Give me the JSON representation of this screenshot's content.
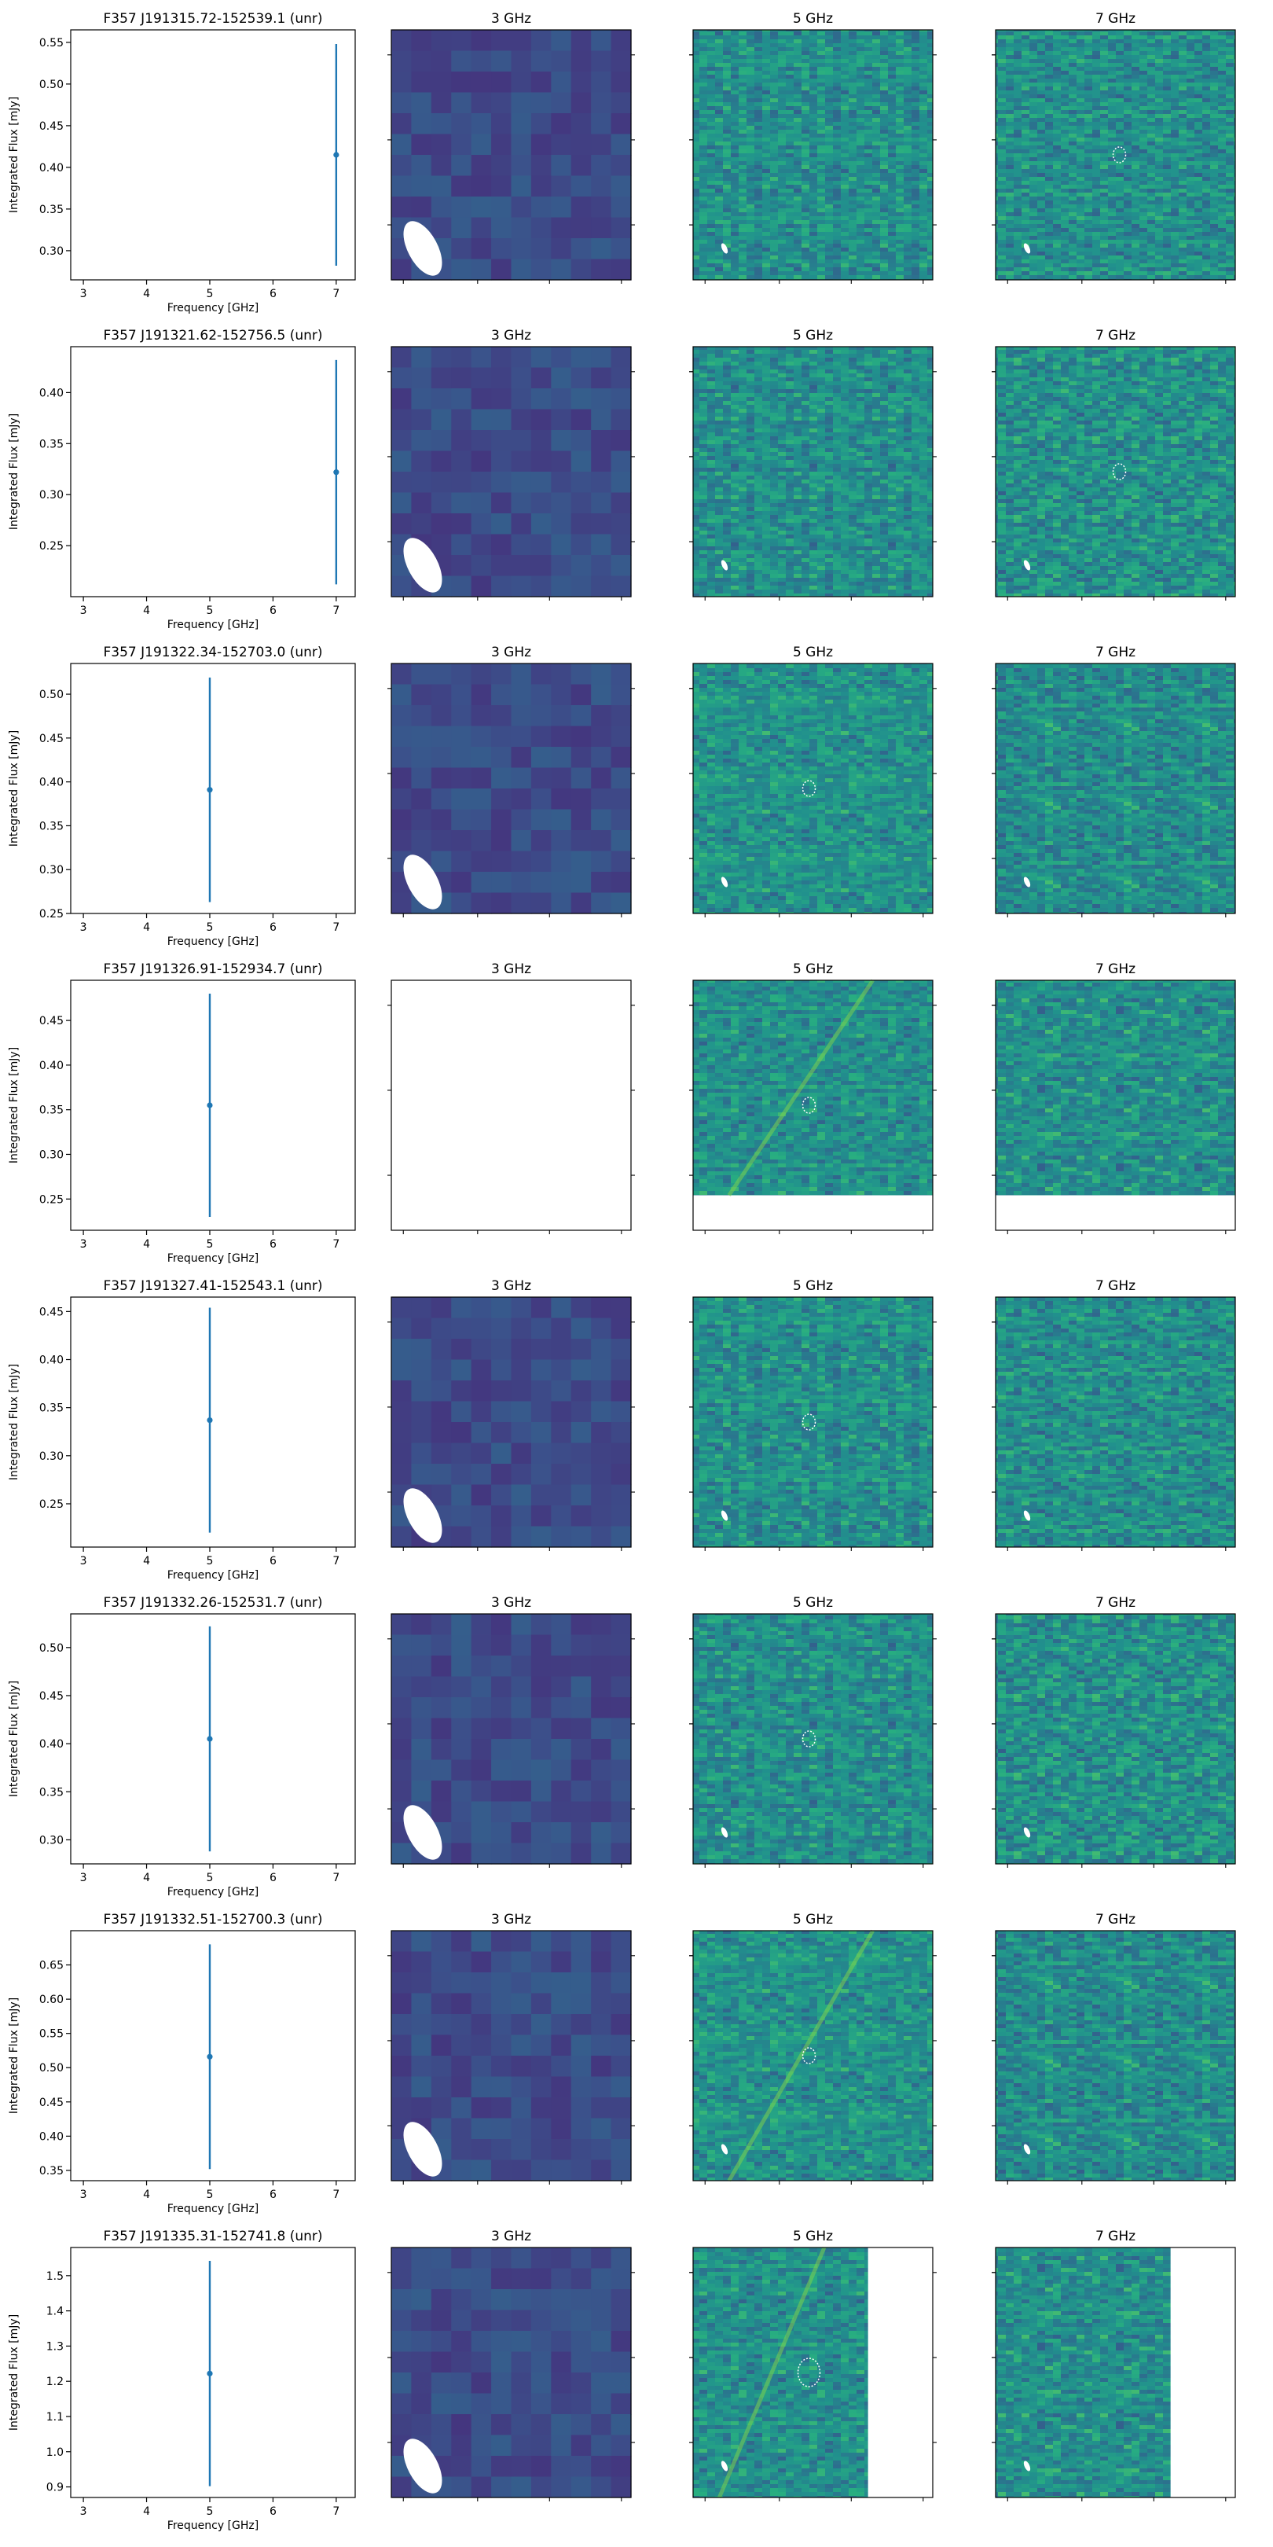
{
  "figure": {
    "colors": {
      "errorbar": "#1f77b4",
      "axes": "#000000",
      "beam": "#ffffff",
      "source_marker": "#ffffff",
      "map_low_3ghz": "#3e4a89",
      "map_low": "#2e6e8e",
      "map_high": "#6ece58"
    },
    "colormap": "viridis",
    "image_columns": [
      "3 GHz",
      "5 GHz",
      "7 GHz"
    ]
  },
  "chart_data": [
    {
      "row": 1,
      "type": "errorbar",
      "title": "F357 J191315.72-152539.1 (unr)",
      "xlabel": "Frequency [GHz]",
      "ylabel": "Integrated Flux [mJy]",
      "xlim": [
        2.8,
        7.3
      ],
      "xticks": [
        "3",
        "4",
        "5",
        "6",
        "7"
      ],
      "ylim": [
        0.265,
        0.565
      ],
      "yticks": [
        "0.30",
        "0.35",
        "0.40",
        "0.45",
        "0.50",
        "0.55"
      ],
      "points": [
        {
          "x": 7,
          "y": 0.415,
          "yerr": 0.133
        }
      ],
      "images": {
        "3 GHz": {
          "data": true,
          "beam": true
        },
        "5 GHz": {
          "data": true,
          "beam": true,
          "source_marker": false,
          "coverage": [
            1,
            1
          ]
        },
        "7 GHz": {
          "data": true,
          "beam": true,
          "source_marker": true,
          "coverage": [
            1,
            1
          ]
        }
      }
    },
    {
      "row": 2,
      "type": "errorbar",
      "title": "F357 J191321.62-152756.5 (unr)",
      "xlabel": "Frequency [GHz]",
      "ylabel": "Integrated Flux [mJy]",
      "xlim": [
        2.8,
        7.3
      ],
      "xticks": [
        "3",
        "4",
        "5",
        "6",
        "7"
      ],
      "ylim": [
        0.2,
        0.445
      ],
      "yticks": [
        "0.25",
        "0.30",
        "0.35",
        "0.40"
      ],
      "points": [
        {
          "x": 7,
          "y": 0.322,
          "yerr": 0.11
        }
      ],
      "images": {
        "3 GHz": {
          "data": true,
          "beam": true
        },
        "5 GHz": {
          "data": true,
          "beam": true,
          "source_marker": false,
          "coverage": [
            1,
            1
          ]
        },
        "7 GHz": {
          "data": true,
          "beam": true,
          "source_marker": true,
          "coverage": [
            1,
            1
          ]
        }
      }
    },
    {
      "row": 3,
      "type": "errorbar",
      "title": "F357 J191322.34-152703.0 (unr)",
      "xlabel": "Frequency [GHz]",
      "ylabel": "Integrated Flux [mJy]",
      "xlim": [
        2.8,
        7.3
      ],
      "xticks": [
        "3",
        "4",
        "5",
        "6",
        "7"
      ],
      "ylim": [
        0.25,
        0.535
      ],
      "yticks": [
        "0.25",
        "0.30",
        "0.35",
        "0.40",
        "0.45",
        "0.50"
      ],
      "points": [
        {
          "x": 5,
          "y": 0.391,
          "yerr": 0.128
        }
      ],
      "images": {
        "3 GHz": {
          "data": true,
          "beam": true
        },
        "5 GHz": {
          "data": true,
          "beam": true,
          "source_marker": true,
          "coverage": [
            1,
            1
          ]
        },
        "7 GHz": {
          "data": true,
          "beam": true,
          "source_marker": false,
          "coverage": [
            1,
            1
          ]
        }
      }
    },
    {
      "row": 4,
      "type": "errorbar",
      "title": "F357 J191326.91-152934.7 (unr)",
      "xlabel": "Frequency [GHz]",
      "ylabel": "Integrated Flux [mJy]",
      "xlim": [
        2.8,
        7.3
      ],
      "xticks": [
        "3",
        "4",
        "5",
        "6",
        "7"
      ],
      "ylim": [
        0.215,
        0.495
      ],
      "yticks": [
        "0.25",
        "0.30",
        "0.35",
        "0.40",
        "0.45"
      ],
      "points": [
        {
          "x": 5,
          "y": 0.355,
          "yerr": 0.125
        }
      ],
      "images": {
        "3 GHz": {
          "data": false,
          "beam": false
        },
        "5 GHz": {
          "data": true,
          "beam": false,
          "source_marker": true,
          "coverage": [
            1,
            0.86
          ]
        },
        "7 GHz": {
          "data": true,
          "beam": false,
          "source_marker": false,
          "coverage": [
            1,
            0.86
          ]
        }
      }
    },
    {
      "row": 5,
      "type": "errorbar",
      "title": "F357 J191327.41-152543.1 (unr)",
      "xlabel": "Frequency [GHz]",
      "ylabel": "Integrated Flux [mJy]",
      "xlim": [
        2.8,
        7.3
      ],
      "xticks": [
        "3",
        "4",
        "5",
        "6",
        "7"
      ],
      "ylim": [
        0.205,
        0.465
      ],
      "yticks": [
        "0.25",
        "0.30",
        "0.35",
        "0.40",
        "0.45"
      ],
      "points": [
        {
          "x": 5,
          "y": 0.337,
          "yerr": 0.117
        }
      ],
      "images": {
        "3 GHz": {
          "data": true,
          "beam": true
        },
        "5 GHz": {
          "data": true,
          "beam": true,
          "source_marker": true,
          "coverage": [
            1,
            1
          ]
        },
        "7 GHz": {
          "data": true,
          "beam": true,
          "source_marker": false,
          "coverage": [
            1,
            1
          ]
        }
      }
    },
    {
      "row": 6,
      "type": "errorbar",
      "title": "F357 J191332.26-152531.7 (unr)",
      "xlabel": "Frequency [GHz]",
      "ylabel": "Integrated Flux [mJy]",
      "xlim": [
        2.8,
        7.3
      ],
      "xticks": [
        "3",
        "4",
        "5",
        "6",
        "7"
      ],
      "ylim": [
        0.275,
        0.535
      ],
      "yticks": [
        "0.30",
        "0.35",
        "0.40",
        "0.45",
        "0.50"
      ],
      "points": [
        {
          "x": 5,
          "y": 0.405,
          "yerr": 0.117
        }
      ],
      "images": {
        "3 GHz": {
          "data": true,
          "beam": true
        },
        "5 GHz": {
          "data": true,
          "beam": true,
          "source_marker": true,
          "coverage": [
            1,
            1
          ]
        },
        "7 GHz": {
          "data": true,
          "beam": true,
          "source_marker": false,
          "coverage": [
            1,
            1
          ]
        }
      }
    },
    {
      "row": 7,
      "type": "errorbar",
      "title": "F357 J191332.51-152700.3 (unr)",
      "xlabel": "Frequency [GHz]",
      "ylabel": "Integrated Flux [mJy]",
      "xlim": [
        2.8,
        7.3
      ],
      "xticks": [
        "3",
        "4",
        "5",
        "6",
        "7"
      ],
      "ylim": [
        0.335,
        0.7
      ],
      "yticks": [
        "0.35",
        "0.40",
        "0.45",
        "0.50",
        "0.55",
        "0.60",
        "0.65"
      ],
      "points": [
        {
          "x": 5,
          "y": 0.516,
          "yerr": 0.164
        }
      ],
      "images": {
        "3 GHz": {
          "data": true,
          "beam": true
        },
        "5 GHz": {
          "data": true,
          "beam": true,
          "source_marker": true,
          "coverage": [
            1,
            1
          ]
        },
        "7 GHz": {
          "data": true,
          "beam": true,
          "source_marker": false,
          "coverage": [
            1,
            1
          ]
        }
      }
    },
    {
      "row": 8,
      "type": "errorbar",
      "title": "F357 J191335.31-152741.8 (unr)",
      "xlabel": "Frequency [GHz]",
      "ylabel": "Integrated Flux [mJy]",
      "xlim": [
        2.8,
        7.3
      ],
      "xticks": [
        "3",
        "4",
        "5",
        "6",
        "7"
      ],
      "ylim": [
        0.87,
        1.58
      ],
      "yticks": [
        "0.9",
        "1.0",
        "1.1",
        "1.2",
        "1.3",
        "1.4",
        "1.5"
      ],
      "points": [
        {
          "x": 5,
          "y": 1.222,
          "yerr": 0.32
        }
      ],
      "images": {
        "3 GHz": {
          "data": true,
          "beam": true
        },
        "5 GHz": {
          "data": true,
          "beam": true,
          "source_marker": true,
          "coverage": [
            0.73,
            1
          ]
        },
        "7 GHz": {
          "data": true,
          "beam": true,
          "source_marker": false,
          "coverage": [
            0.73,
            1
          ]
        }
      }
    }
  ]
}
